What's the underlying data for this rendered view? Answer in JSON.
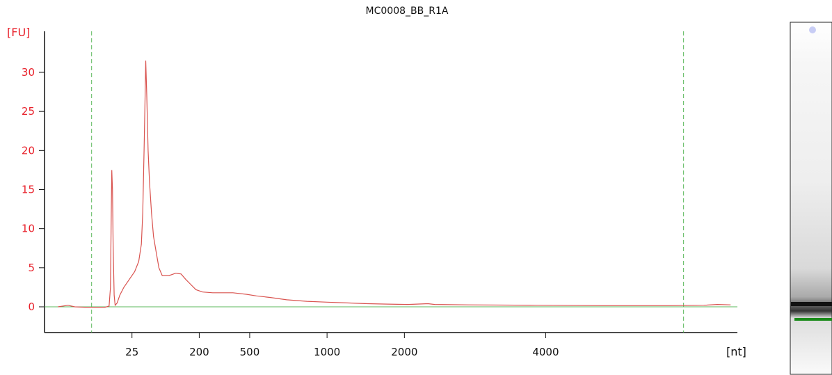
{
  "chart_data": {
    "type": "line",
    "title": "MC0008_BB_R1A",
    "ylabel": "[FU]",
    "xlabel": "[nt]",
    "ylim": [
      -3.2,
      35
    ],
    "y_ticks": [
      0,
      5,
      10,
      15,
      20,
      25,
      30
    ],
    "x_ticks": [
      "25",
      "200",
      "500",
      "1000",
      "2000",
      "4000"
    ],
    "grid": false,
    "colors": {
      "trace": "#d9534f",
      "baseline": "#5cb85c",
      "markers": "#5cb85c",
      "y_axis_text": "#e8202a",
      "gel_band_dark": "#111111",
      "gel_band_green": "#1a8a1a"
    },
    "series": [
      {
        "values": [
          [
            -1.0,
            0.0
          ],
          [
            0.5,
            0.2
          ],
          [
            1.5,
            0.0
          ],
          [
            3.0,
            -0.05
          ],
          [
            6.0,
            -0.05
          ],
          [
            6.6,
            0.1
          ],
          [
            6.8,
            2.5
          ],
          [
            6.9,
            10.0
          ],
          [
            7.0,
            17.5
          ],
          [
            7.1,
            15.0
          ],
          [
            7.2,
            8.0
          ],
          [
            7.35,
            1.5
          ],
          [
            7.5,
            0.2
          ],
          [
            7.8,
            0.5
          ],
          [
            8.2,
            1.5
          ],
          [
            8.8,
            2.5
          ],
          [
            9.6,
            3.5
          ],
          [
            10.4,
            4.5
          ],
          [
            11.0,
            5.8
          ],
          [
            11.4,
            8.0
          ],
          [
            11.6,
            12.0
          ],
          [
            11.8,
            20.0
          ],
          [
            11.95,
            27.0
          ],
          [
            12.05,
            31.5
          ],
          [
            12.2,
            27.0
          ],
          [
            12.4,
            20.0
          ],
          [
            12.6,
            16.0
          ],
          [
            12.9,
            12.0
          ],
          [
            13.2,
            9.0
          ],
          [
            13.6,
            7.0
          ],
          [
            14.0,
            5.0
          ],
          [
            14.5,
            4.0
          ],
          [
            15.5,
            4.0
          ],
          [
            16.5,
            4.3
          ],
          [
            17.3,
            4.2
          ],
          [
            18.0,
            3.5
          ],
          [
            18.8,
            2.8
          ],
          [
            19.5,
            2.2
          ],
          [
            20.5,
            1.9
          ],
          [
            22.0,
            1.8
          ],
          [
            25.0,
            1.8
          ],
          [
            27.0,
            1.6
          ],
          [
            28.5,
            1.4
          ],
          [
            30.5,
            1.2
          ],
          [
            33.0,
            0.9
          ],
          [
            36.0,
            0.7
          ],
          [
            39.0,
            0.6
          ],
          [
            42.0,
            0.5
          ],
          [
            45.0,
            0.4
          ],
          [
            48.0,
            0.35
          ],
          [
            51.0,
            0.3
          ],
          [
            54.0,
            0.4
          ],
          [
            55.0,
            0.3
          ],
          [
            60.0,
            0.25
          ],
          [
            70.0,
            0.2
          ],
          [
            80.0,
            0.15
          ],
          [
            90.0,
            0.15
          ],
          [
            95.0,
            0.2
          ],
          [
            97.0,
            0.3
          ],
          [
            99.0,
            0.25
          ]
        ]
      }
    ],
    "tick_positions": [
      10,
      20,
      27.5,
      39,
      50.5,
      71.5
    ],
    "marker_positions": [
      4,
      92
    ],
    "x_range": [
      -3,
      100
    ]
  }
}
